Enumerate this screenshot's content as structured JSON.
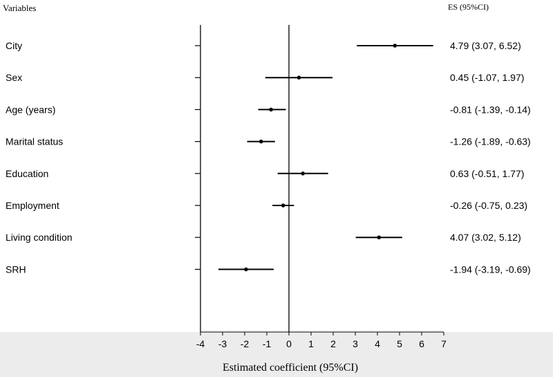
{
  "chart_data": {
    "type": "forest",
    "header_left": "Variables",
    "header_right": "ES (95%CI)",
    "xlabel": "Estimated coefficient (95%CI)",
    "xlim": [
      -4,
      7
    ],
    "xticks": [
      -4,
      -3,
      -2,
      -1,
      0,
      1,
      2,
      3,
      4,
      5,
      6,
      7
    ],
    "reference_line": 0,
    "rows": [
      {
        "label": "City",
        "estimate": 4.79,
        "lower": 3.07,
        "upper": 6.52,
        "text": "4.79 (3.07, 6.52)"
      },
      {
        "label": "Sex",
        "estimate": 0.45,
        "lower": -1.07,
        "upper": 1.97,
        "text": "0.45 (-1.07, 1.97)"
      },
      {
        "label": "Age (years)",
        "estimate": -0.81,
        "lower": -1.39,
        "upper": -0.14,
        "text": "-0.81 (-1.39, -0.14)"
      },
      {
        "label": "Marital status",
        "estimate": -1.26,
        "lower": -1.89,
        "upper": -0.63,
        "text": "-1.26 (-1.89, -0.63)"
      },
      {
        "label": "Education",
        "estimate": 0.63,
        "lower": -0.51,
        "upper": 1.77,
        "text": "0.63 (-0.51, 1.77)"
      },
      {
        "label": "Employment",
        "estimate": -0.26,
        "lower": -0.75,
        "upper": 0.23,
        "text": "-0.26 (-0.75, 0.23)"
      },
      {
        "label": "Living condition",
        "estimate": 4.07,
        "lower": 3.02,
        "upper": 5.12,
        "text": "4.07 (3.02, 5.12)"
      },
      {
        "label": "SRH",
        "estimate": -1.94,
        "lower": -3.19,
        "upper": -0.69,
        "text": "-1.94 (-3.19, -0.69)"
      }
    ],
    "colors": {
      "marks": "#000000",
      "axis_band": "#ececec",
      "background": "#ffffff"
    },
    "grid": false
  }
}
